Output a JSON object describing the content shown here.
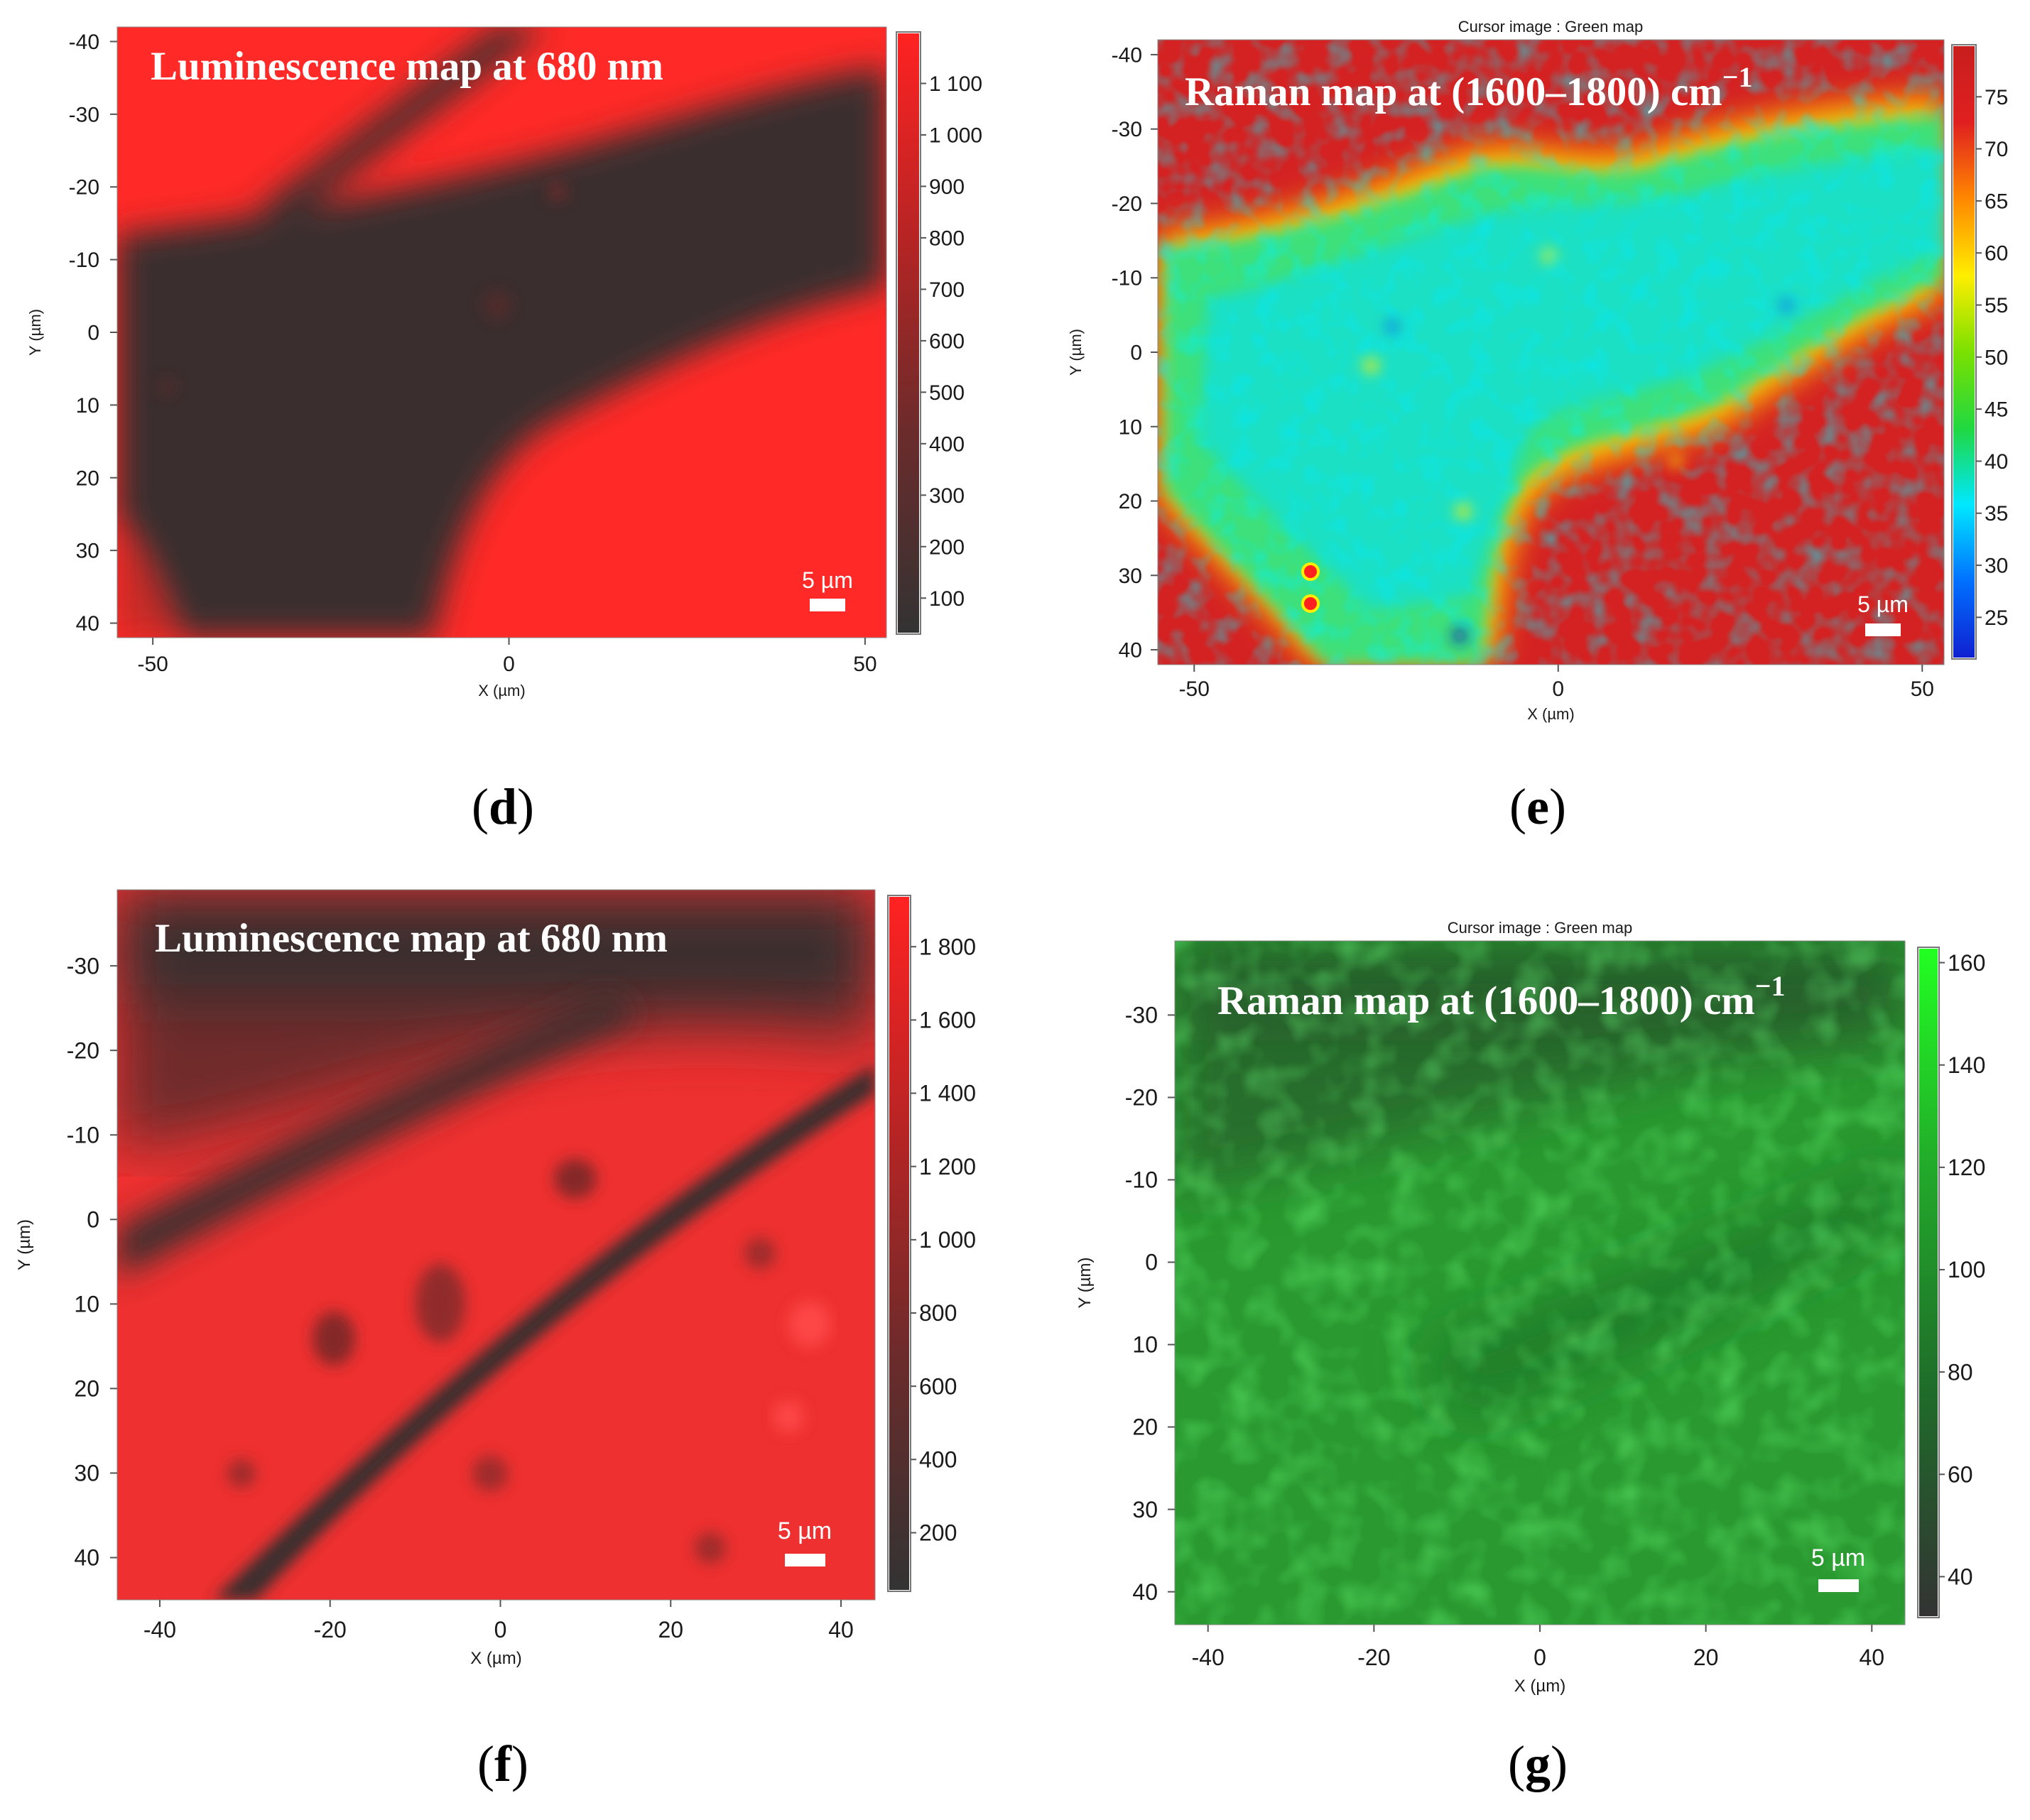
{
  "chart_data": [
    {
      "id": "d",
      "type": "heatmap",
      "panel_label": "d",
      "title": "Luminescence map at 680 nm",
      "xlabel": "X (µm)",
      "ylabel": "Y (µm)",
      "xlim": [
        -55,
        53
      ],
      "ylim": [
        -42,
        42
      ],
      "y_inverted": true,
      "xticks": [
        -50,
        0,
        50
      ],
      "xtick_labels": [
        "-50",
        "0",
        "50"
      ],
      "yticks": [
        -40,
        -30,
        -20,
        -10,
        0,
        10,
        20,
        30,
        40
      ],
      "ytick_labels": [
        "-40",
        "-30",
        "-20",
        "-10",
        "0",
        "10",
        "20",
        "30",
        "40"
      ],
      "colorbar": {
        "min": 30,
        "max": 1200,
        "ticks": [
          100,
          200,
          300,
          400,
          500,
          600,
          700,
          800,
          900,
          1000,
          1100
        ],
        "tick_labels": [
          "100",
          "200",
          "300",
          "400",
          "500",
          "600",
          "700",
          "800",
          "900",
          "1 000",
          "1 100"
        ],
        "colormap": [
          "#333333",
          "#6b2b2b",
          "#b82424",
          "#ff2222"
        ]
      },
      "scale_bar": "5 µm",
      "background_color": "#ff2a27",
      "feature_color": "#3b2f2f"
    },
    {
      "id": "e",
      "type": "heatmap",
      "panel_label": "e",
      "cursor_title": "Cursor image : Green map",
      "title": "Raman map at (1600–1800) cm",
      "title_superscript": "−1",
      "xlabel": "X (µm)",
      "ylabel": "Y (µm)",
      "xlim": [
        -55,
        53
      ],
      "ylim": [
        -42,
        42
      ],
      "y_inverted": true,
      "xticks": [
        -50,
        0,
        50
      ],
      "xtick_labels": [
        "-50",
        "0",
        "50"
      ],
      "yticks": [
        -40,
        -30,
        -20,
        -10,
        0,
        10,
        20,
        30,
        40
      ],
      "ytick_labels": [
        "-40",
        "-30",
        "-20",
        "-10",
        "0",
        "10",
        "20",
        "30",
        "40"
      ],
      "colorbar": {
        "min": 21,
        "max": 80,
        "ticks": [
          25,
          30,
          35,
          40,
          45,
          50,
          55,
          60,
          65,
          70,
          75
        ],
        "tick_labels": [
          "25",
          "30",
          "35",
          "40",
          "45",
          "50",
          "55",
          "60",
          "65",
          "70",
          "75"
        ],
        "colormap": [
          "#1020d0",
          "#0070ff",
          "#00e8ff",
          "#20d840",
          "#7be000",
          "#ffee00",
          "#ff8800",
          "#e02020",
          "#c81e1e"
        ]
      },
      "scale_bar": "5 µm",
      "background_color": "#d42222",
      "feature_color": "#3ce07a"
    },
    {
      "id": "f",
      "type": "heatmap",
      "panel_label": "f",
      "title": "Luminescence map at 680 nm",
      "xlabel": "X (µm)",
      "ylabel": "Y (µm)",
      "xlim": [
        -45,
        44
      ],
      "ylim": [
        -39,
        45
      ],
      "y_inverted": true,
      "xticks": [
        -40,
        -20,
        0,
        20,
        40
      ],
      "xtick_labels": [
        "-40",
        "-20",
        "0",
        "20",
        "40"
      ],
      "yticks": [
        -30,
        -20,
        -10,
        0,
        10,
        20,
        30,
        40
      ],
      "ytick_labels": [
        "-30",
        "-20",
        "-10",
        "0",
        "10",
        "20",
        "30",
        "40"
      ],
      "colorbar": {
        "min": 40,
        "max": 1940,
        "ticks": [
          200,
          400,
          600,
          800,
          1000,
          1200,
          1400,
          1600,
          1800
        ],
        "tick_labels": [
          "200",
          "400",
          "600",
          "800",
          "1 000",
          "1 200",
          "1 400",
          "1 600",
          "1 800"
        ],
        "colormap": [
          "#333333",
          "#6b2b2b",
          "#b82424",
          "#ff2222"
        ]
      },
      "scale_bar": "5 µm",
      "background_color": "#ee3030",
      "feature_color": "#3a2e2e"
    },
    {
      "id": "g",
      "type": "heatmap",
      "panel_label": "g",
      "cursor_title": "Cursor image : Green map",
      "title": "Raman map at (1600–1800) cm",
      "title_superscript": "−1",
      "xlabel": "X (µm)",
      "ylabel": "Y (µm)",
      "xlim": [
        -44,
        44
      ],
      "ylim": [
        -39,
        44
      ],
      "y_inverted": true,
      "xticks": [
        -40,
        -20,
        0,
        20,
        40
      ],
      "xtick_labels": [
        "-40",
        "-20",
        "0",
        "20",
        "40"
      ],
      "yticks": [
        -30,
        -20,
        -10,
        0,
        10,
        20,
        30,
        40
      ],
      "ytick_labels": [
        "-30",
        "-20",
        "-10",
        "0",
        "10",
        "20",
        "30",
        "40"
      ],
      "colorbar": {
        "min": 32,
        "max": 163,
        "ticks": [
          40,
          60,
          80,
          100,
          120,
          140,
          160
        ],
        "tick_labels": [
          "40",
          "60",
          "80",
          "100",
          "120",
          "140",
          "160"
        ],
        "colormap": [
          "#333333",
          "#1f6b2a",
          "#22a82a",
          "#22ff22"
        ]
      },
      "scale_bar": "5 µm",
      "background_color": "#2a9a30",
      "feature_color": "#1f7a28"
    }
  ]
}
